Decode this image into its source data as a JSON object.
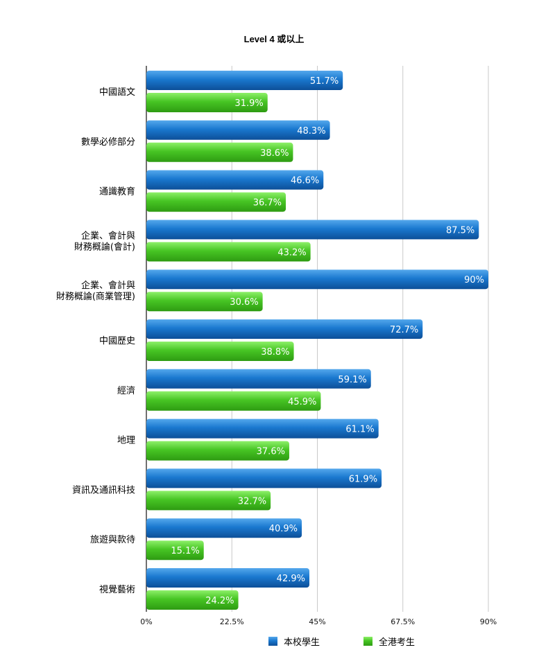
{
  "chart_data": {
    "type": "bar",
    "orientation": "horizontal",
    "title": "Level 4 或以上",
    "categories": [
      "中國語文",
      "數學必修部分",
      "通識教育",
      "企業、會計與\n財務概論(會計)",
      "企業、會計與\n財務概論(商業管理)",
      "中國歷史",
      "經濟",
      "地理",
      "資訊及通訊科技",
      "旅遊與款待",
      "視覺藝術"
    ],
    "series": [
      {
        "name": "本校學生",
        "color": "#1a6fc4",
        "values": [
          51.7,
          48.3,
          46.6,
          87.5,
          90,
          72.7,
          59.1,
          61.1,
          61.9,
          40.9,
          42.9
        ],
        "labels": [
          "51.7%",
          "48.3%",
          "46.6%",
          "87.5%",
          "90%",
          "72.7%",
          "59.1%",
          "61.1%",
          "61.9%",
          "40.9%",
          "42.9%"
        ]
      },
      {
        "name": "全港考生",
        "color": "#3fbf1f",
        "values": [
          31.9,
          38.6,
          36.7,
          43.2,
          30.6,
          38.8,
          45.9,
          37.6,
          32.7,
          15.1,
          24.2
        ],
        "labels": [
          "31.9%",
          "38.6%",
          "36.7%",
          "43.2%",
          "30.6%",
          "38.8%",
          "45.9%",
          "37.6%",
          "32.7%",
          "15.1%",
          "24.2%"
        ]
      }
    ],
    "xlim": [
      0,
      90
    ],
    "ticks": [
      0,
      22.5,
      45,
      67.5,
      90
    ],
    "tick_labels": [
      "0%",
      "22.5%",
      "45%",
      "67.5%",
      "90%"
    ],
    "grid": true,
    "legend_position": "bottom"
  }
}
